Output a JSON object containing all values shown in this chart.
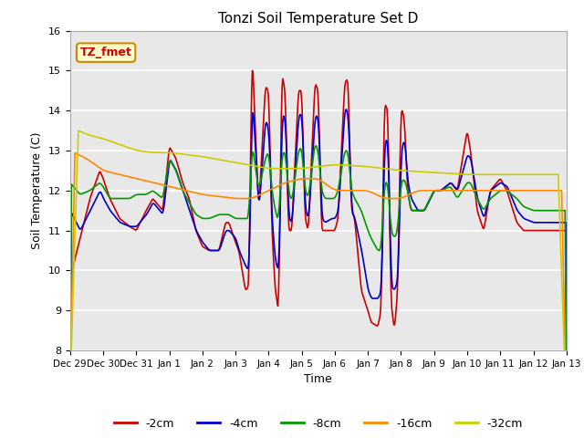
{
  "title": "Tonzi Soil Temperature Set D",
  "xlabel": "Time",
  "ylabel": "Soil Temperature (C)",
  "ylim": [
    8.0,
    16.0
  ],
  "yticks": [
    8.0,
    9.0,
    10.0,
    11.0,
    12.0,
    13.0,
    14.0,
    15.0,
    16.0
  ],
  "xtick_labels": [
    "Dec 29",
    "Dec 30",
    "Dec 31",
    "Jan 1",
    "Jan 2",
    "Jan 3",
    "Jan 4",
    "Jan 5",
    "Jan 6",
    "Jan 7",
    "Jan 8",
    "Jan 9",
    "Jan 10",
    "Jan 11",
    "Jan 12",
    "Jan 13"
  ],
  "legend_label": "TZ_fmet",
  "series_colors": [
    "#cc0000",
    "#0000cc",
    "#009900",
    "#ff8800",
    "#cccc00"
  ],
  "series_labels": [
    "-2cm",
    "-4cm",
    "-8cm",
    "-16cm",
    "-32cm"
  ],
  "background_color": "#e8e8e8",
  "legend_box_color": "#ffffcc",
  "legend_box_edge": "#cc8800"
}
